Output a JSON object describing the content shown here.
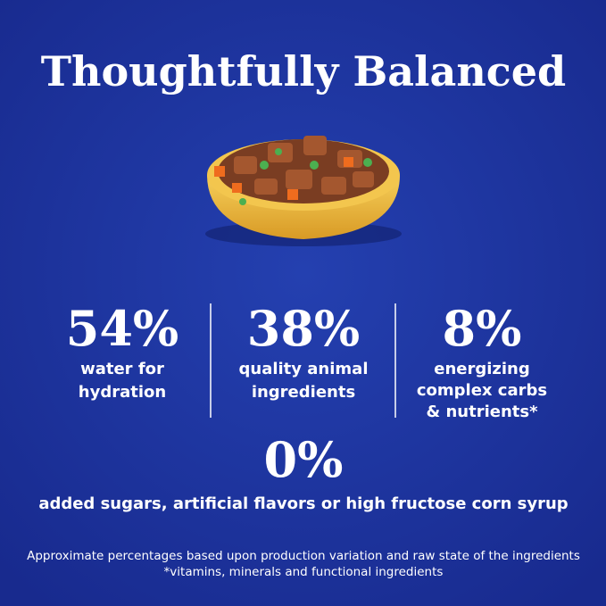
{
  "title": "Thoughtfully Balanced",
  "stats": [
    {
      "value": "54%",
      "lines": [
        "water for",
        "hydration"
      ]
    },
    {
      "value": "38%",
      "lines": [
        "quality animal",
        "ingredients"
      ]
    },
    {
      "value": "8%",
      "lines": [
        "energizing",
        "complex carbs",
        "& nutrients*"
      ]
    }
  ],
  "highlight": {
    "value": "0%",
    "text": "added sugars, artificial flavors or high fructose corn syrup"
  },
  "footnotes": [
    "Approximate percentages based upon production variation and raw state of the ingredients",
    "*vitamins, minerals and functional ingredients"
  ]
}
